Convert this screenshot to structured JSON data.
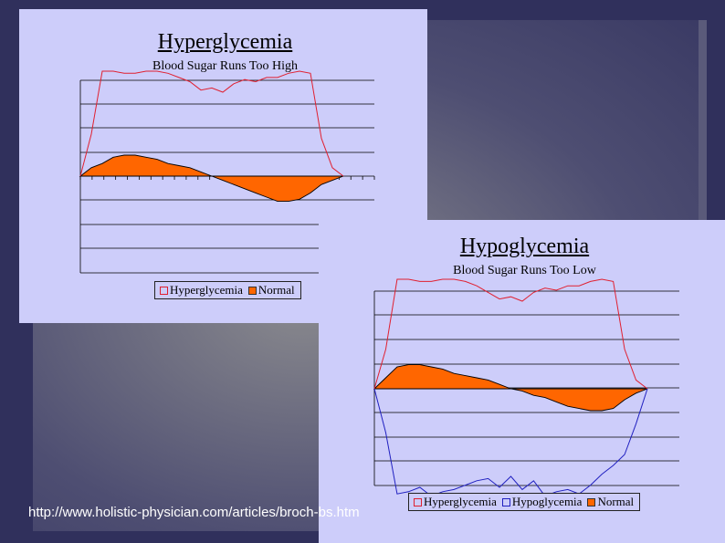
{
  "colors": {
    "background": "#30305c",
    "panel": "#cdcdfa",
    "hyperglycemia": "#e02030",
    "hypoglycemia": "#2020c0",
    "normal": "#ff6600"
  },
  "source_text": "http://www.holistic-physician.com/articles/broch-bs.htm",
  "chart_data": [
    {
      "type": "line",
      "title": "Hyperglycemia",
      "subtitle": "Blood Sugar Runs Too High",
      "xlabel": "",
      "ylabel": "",
      "grid": true,
      "legend_position": "bottom",
      "legend": [
        "Hyperglycemia",
        "Normal"
      ],
      "series": [
        {
          "name": "Hyperglycemia",
          "kind": "line",
          "color": "#e02030",
          "values": [
            0,
            1,
            2.5,
            2.5,
            2.45,
            2.45,
            2.5,
            2.5,
            2.45,
            2.35,
            2.25,
            2.05,
            2.1,
            2.0,
            2.2,
            2.3,
            2.25,
            2.35,
            2.35,
            2.45,
            2.5,
            2.45,
            0.9,
            0.2,
            0
          ]
        },
        {
          "name": "Normal",
          "kind": "area",
          "color": "#ff6600",
          "values": [
            0,
            0.2,
            0.3,
            0.45,
            0.5,
            0.5,
            0.45,
            0.4,
            0.3,
            0.25,
            0.2,
            0.1,
            0,
            -0.1,
            -0.2,
            -0.3,
            -0.4,
            -0.5,
            -0.6,
            -0.6,
            -0.55,
            -0.4,
            -0.2,
            -0.1,
            0
          ]
        }
      ]
    },
    {
      "type": "line",
      "title": "Hypoglycemia",
      "subtitle": "Blood Sugar Runs Too Low",
      "xlabel": "",
      "ylabel": "",
      "grid": true,
      "legend_position": "bottom",
      "legend": [
        "Hyperglycemia",
        "Hypoglycemia",
        "Normal"
      ],
      "series": [
        {
          "name": "Hyperglycemia",
          "kind": "line",
          "color": "#e02030",
          "values": [
            0,
            0.9,
            2.5,
            2.5,
            2.45,
            2.45,
            2.5,
            2.5,
            2.45,
            2.35,
            2.2,
            2.05,
            2.1,
            2.0,
            2.2,
            2.3,
            2.25,
            2.35,
            2.35,
            2.45,
            2.5,
            2.45,
            0.9,
            0.2,
            0
          ]
        },
        {
          "name": "Hypoglycemia",
          "kind": "line",
          "color": "#2020c0",
          "values": [
            0,
            -1,
            -2.4,
            -2.35,
            -2.25,
            -2.45,
            -2.35,
            -2.3,
            -2.2,
            -2.1,
            -2.05,
            -2.25,
            -2.0,
            -2.3,
            -2.1,
            -2.45,
            -2.35,
            -2.3,
            -2.4,
            -2.2,
            -1.95,
            -1.75,
            -1.5,
            -0.8,
            0
          ]
        },
        {
          "name": "Normal",
          "kind": "area",
          "color": "#ff6600",
          "values": [
            0,
            0.25,
            0.5,
            0.55,
            0.55,
            0.5,
            0.45,
            0.35,
            0.3,
            0.25,
            0.2,
            0.1,
            0,
            -0.05,
            -0.15,
            -0.2,
            -0.3,
            -0.4,
            -0.45,
            -0.5,
            -0.5,
            -0.45,
            -0.25,
            -0.1,
            0
          ]
        }
      ]
    }
  ],
  "charts": [
    {
      "title": "Hyperglycemia",
      "subtitle": "Blood Sugar Runs Too High"
    },
    {
      "title": "Hypoglycemia",
      "subtitle": "Blood Sugar Runs Too Low"
    }
  ]
}
